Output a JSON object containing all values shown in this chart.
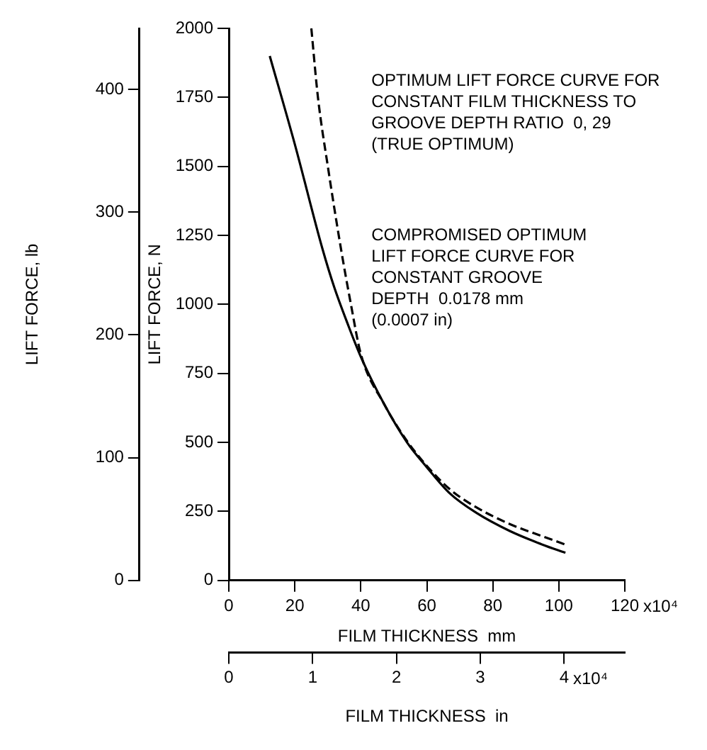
{
  "chart_data": {
    "type": "line",
    "xlabel": "FILM THICKNESS  mm",
    "x2label": "FILM THICKNESS  in",
    "ylabel": "LIFT FORCE, N",
    "y2label": "LIFT FORCE, lb",
    "xlim": [
      0,
      120
    ],
    "xticks": [
      0,
      20,
      40,
      60,
      80,
      100,
      120
    ],
    "annotations": [
      "x10⁴",
      "x10⁴"
    ],
    "x2lim": [
      0,
      4.724
    ],
    "x2ticks": [
      0,
      1,
      2,
      3,
      4
    ],
    "ylim": [
      0,
      2000
    ],
    "yticks": [
      0,
      250,
      500,
      750,
      1000,
      1250,
      1500,
      1750,
      2000
    ],
    "y2lim": [
      0,
      449.6
    ],
    "y2ticks": [
      0,
      100,
      200,
      300,
      400
    ],
    "grid": false,
    "legend": false,
    "marker": "none",
    "series": [
      {
        "name": "OPTIMUM LIFT FORCE CURVE FOR\nCONSTANT FILM THICKNESS TO\nGROOVE DEPTH RATIO  0, 29\n(TRUE OPTIMUM)",
        "color": "#000000",
        "line_style": "dashed",
        "x": [
          25,
          27,
          30,
          34,
          37,
          40,
          47,
          54,
          60,
          67,
          75,
          85,
          95,
          102
        ],
        "values": [
          2000,
          1750,
          1500,
          1200,
          1000,
          820,
          640,
          505,
          415,
          330,
          265,
          205,
          160,
          130
        ]
      },
      {
        "name": "COMPROMISED OPTIMUM\nLIFT FORCE CURVE FOR\nCONSTANT GROOVE\nDEPTH  0.0178 mm\n(0.0007 in)",
        "color": "#000000",
        "line_style": "solid",
        "x": [
          12.4,
          20,
          28.4,
          32,
          36,
          40,
          47,
          54,
          60,
          67,
          75,
          85,
          95,
          102
        ],
        "values": [
          1900,
          1580,
          1200,
          1060,
          930,
          810,
          640,
          500,
          410,
          315,
          245,
          180,
          130,
          100
        ]
      }
    ]
  }
}
